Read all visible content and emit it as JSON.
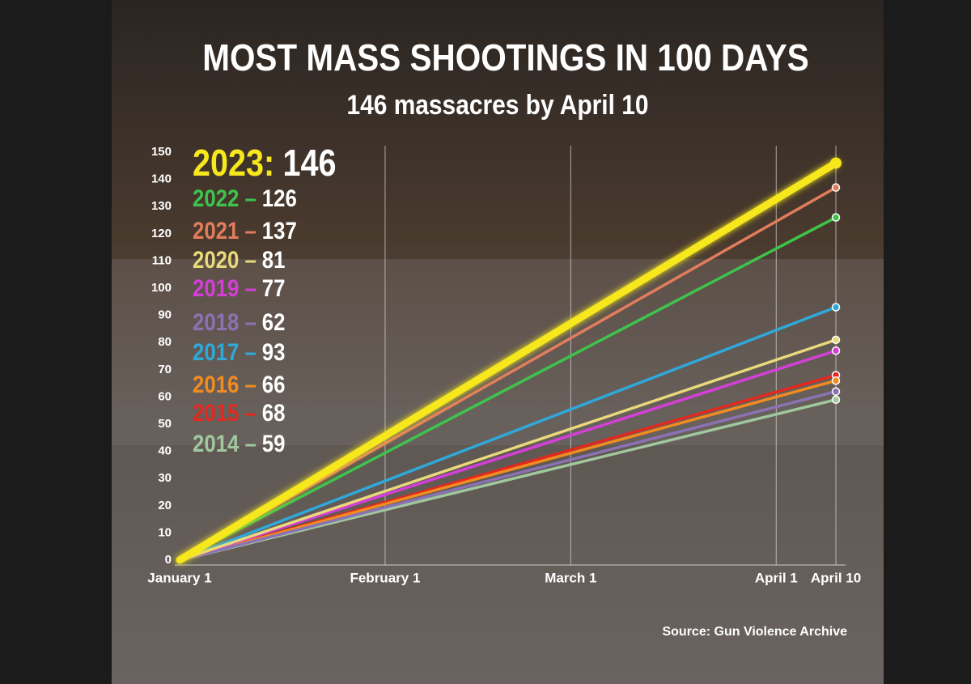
{
  "chart_data": {
    "type": "line",
    "title": "MOST MASS SHOOTINGS IN 100 DAYS",
    "subtitle": "146 massacres by April 10",
    "source": "Source: Gun Violence Archive",
    "x": [
      0,
      99
    ],
    "xlim": [
      0,
      99
    ],
    "xticks": [
      {
        "value": 0,
        "label": "January 1"
      },
      {
        "value": 31,
        "label": "February 1"
      },
      {
        "value": 59,
        "label": "March 1"
      },
      {
        "value": 90,
        "label": "April 1"
      },
      {
        "value": 99,
        "label": "April 10"
      }
    ],
    "ylim": [
      0,
      150
    ],
    "yticks": [
      0,
      10,
      20,
      30,
      40,
      50,
      60,
      70,
      80,
      90,
      100,
      110,
      120,
      130,
      140,
      150
    ],
    "grid": true,
    "legend": "top-left",
    "series": [
      {
        "name": "2023:",
        "color": "#f6e81c",
        "values": [
          0,
          146
        ]
      },
      {
        "name": "2022 –",
        "color": "#3fc34c",
        "values": [
          0,
          126
        ]
      },
      {
        "name": "2021 –",
        "color": "#e27d5c",
        "values": [
          0,
          137
        ]
      },
      {
        "name": "2020 –",
        "color": "#e9d97c",
        "values": [
          0,
          81
        ]
      },
      {
        "name": "2019 –",
        "color": "#d43fd8",
        "values": [
          0,
          77
        ]
      },
      {
        "name": "2018 –",
        "color": "#8b72b3",
        "values": [
          0,
          62
        ]
      },
      {
        "name": "2017 –",
        "color": "#2fa8da",
        "values": [
          0,
          93
        ]
      },
      {
        "name": "2016 –",
        "color": "#f08c20",
        "values": [
          0,
          66
        ]
      },
      {
        "name": "2015 –",
        "color": "#e2281f",
        "values": [
          0,
          68
        ]
      },
      {
        "name": "2014 –",
        "color": "#a0c89e",
        "values": [
          0,
          59
        ]
      }
    ]
  }
}
